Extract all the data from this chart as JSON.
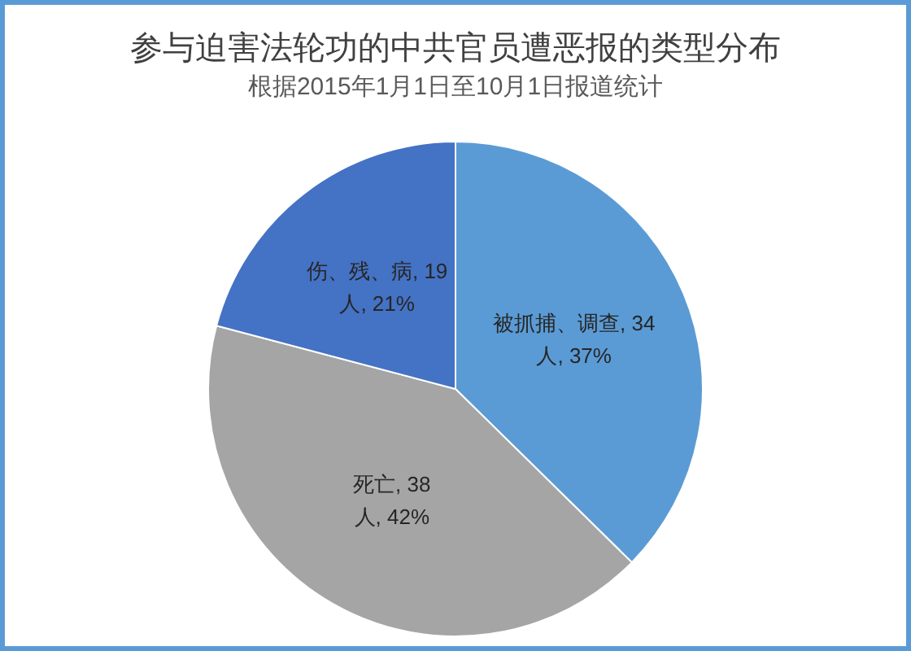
{
  "chart_data": {
    "type": "pie",
    "title": "参与迫害法轮功的中共官员遭恶报的类型分布",
    "subtitle": "根据2015年1月1日至10月1日报道统计",
    "categories": [
      "被抓捕、调查",
      "死亡",
      "伤、残、病"
    ],
    "values": [
      34,
      38,
      19
    ],
    "colors": [
      "#5b9bd5",
      "#a5a5a5",
      "#4472c4"
    ],
    "value_labels": [
      "34人, 37%",
      "38人, 42%",
      "19人, 21%"
    ]
  }
}
